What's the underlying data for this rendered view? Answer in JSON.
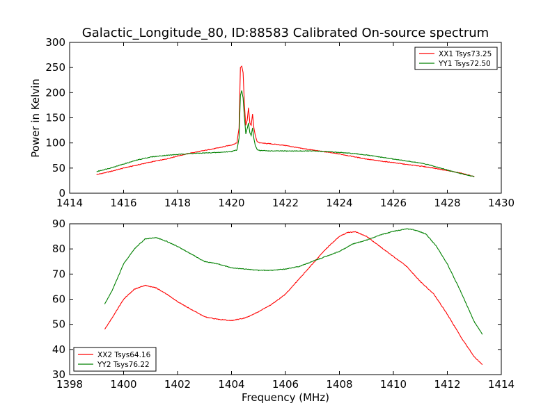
{
  "title": "Galactic_Longitude_80, ID:88583 Calibrated On-source spectrum",
  "xlabel": "Frequency (MHz)",
  "ylabel_top": "Power in Kelvin",
  "colors": {
    "red": "#ff0000",
    "green": "#008000",
    "axis": "#000000"
  },
  "chart_data": [
    {
      "type": "line",
      "xlabel": "",
      "ylabel": "Power in Kelvin",
      "xlim": [
        1414,
        1430
      ],
      "ylim": [
        0,
        300
      ],
      "xticks": [
        1414,
        1416,
        1418,
        1420,
        1422,
        1424,
        1426,
        1428,
        1430
      ],
      "yticks": [
        0,
        50,
        100,
        150,
        200,
        250,
        300
      ],
      "legend_position": "top-right",
      "grid": false,
      "series": [
        {
          "name": "XX1 Tsys73.25",
          "color": "red",
          "points": [
            [
              1415.0,
              37
            ],
            [
              1415.5,
              43
            ],
            [
              1416.0,
              50
            ],
            [
              1416.5,
              56
            ],
            [
              1417.0,
              62
            ],
            [
              1417.5,
              67
            ],
            [
              1418.0,
              74
            ],
            [
              1418.5,
              80
            ],
            [
              1419.0,
              85
            ],
            [
              1419.5,
              90
            ],
            [
              1420.0,
              96
            ],
            [
              1420.2,
              100
            ],
            [
              1420.28,
              130
            ],
            [
              1420.33,
              250
            ],
            [
              1420.38,
              253
            ],
            [
              1420.43,
              240
            ],
            [
              1420.48,
              175
            ],
            [
              1420.53,
              135
            ],
            [
              1420.58,
              145
            ],
            [
              1420.63,
              170
            ],
            [
              1420.68,
              140
            ],
            [
              1420.73,
              135
            ],
            [
              1420.78,
              157
            ],
            [
              1420.83,
              130
            ],
            [
              1420.88,
              115
            ],
            [
              1420.95,
              103
            ],
            [
              1421.05,
              100
            ],
            [
              1421.5,
              98
            ],
            [
              1422.0,
              95
            ],
            [
              1422.5,
              90
            ],
            [
              1423.0,
              86
            ],
            [
              1423.5,
              82
            ],
            [
              1424.0,
              78
            ],
            [
              1424.5,
              73
            ],
            [
              1425.0,
              68
            ],
            [
              1425.5,
              64
            ],
            [
              1426.0,
              61
            ],
            [
              1426.5,
              57
            ],
            [
              1427.0,
              54
            ],
            [
              1427.5,
              50
            ],
            [
              1428.0,
              45
            ],
            [
              1428.5,
              40
            ],
            [
              1429.0,
              33
            ]
          ]
        },
        {
          "name": "YY1 Tsys72.50",
          "color": "green",
          "points": [
            [
              1415.0,
              43
            ],
            [
              1415.5,
              50
            ],
            [
              1416.0,
              58
            ],
            [
              1416.5,
              66
            ],
            [
              1417.0,
              72
            ],
            [
              1417.5,
              75
            ],
            [
              1418.0,
              77
            ],
            [
              1418.5,
              79
            ],
            [
              1419.0,
              80
            ],
            [
              1419.5,
              81
            ],
            [
              1420.0,
              83
            ],
            [
              1420.2,
              86
            ],
            [
              1420.28,
              110
            ],
            [
              1420.33,
              195
            ],
            [
              1420.38,
              204
            ],
            [
              1420.43,
              190
            ],
            [
              1420.48,
              150
            ],
            [
              1420.53,
              118
            ],
            [
              1420.58,
              128
            ],
            [
              1420.63,
              140
            ],
            [
              1420.68,
              120
            ],
            [
              1420.73,
              115
            ],
            [
              1420.78,
              130
            ],
            [
              1420.83,
              108
            ],
            [
              1420.88,
              95
            ],
            [
              1420.95,
              87
            ],
            [
              1421.05,
              85
            ],
            [
              1421.5,
              84
            ],
            [
              1422.0,
              84
            ],
            [
              1422.5,
              84
            ],
            [
              1423.0,
              84
            ],
            [
              1423.5,
              83
            ],
            [
              1424.0,
              81
            ],
            [
              1424.5,
              79
            ],
            [
              1425.0,
              76
            ],
            [
              1425.5,
              72
            ],
            [
              1426.0,
              68
            ],
            [
              1426.5,
              64
            ],
            [
              1427.0,
              60
            ],
            [
              1427.5,
              54
            ],
            [
              1428.0,
              46
            ],
            [
              1428.5,
              39
            ],
            [
              1429.0,
              33
            ]
          ]
        }
      ]
    },
    {
      "type": "line",
      "xlabel": "Frequency (MHz)",
      "ylabel": "",
      "xlim": [
        1398,
        1414
      ],
      "ylim": [
        30,
        90
      ],
      "xticks": [
        1398,
        1400,
        1402,
        1404,
        1406,
        1408,
        1410,
        1412,
        1414
      ],
      "yticks": [
        30,
        40,
        50,
        60,
        70,
        80,
        90
      ],
      "legend_position": "bottom-left",
      "grid": false,
      "series": [
        {
          "name": "XX2 Tsys64.16",
          "color": "red",
          "points": [
            [
              1399.3,
              48
            ],
            [
              1399.6,
              53
            ],
            [
              1400.0,
              60
            ],
            [
              1400.4,
              64
            ],
            [
              1400.8,
              65.5
            ],
            [
              1401.2,
              64.5
            ],
            [
              1401.6,
              62
            ],
            [
              1402.0,
              59
            ],
            [
              1402.5,
              56
            ],
            [
              1403.0,
              53
            ],
            [
              1403.5,
              52
            ],
            [
              1404.0,
              51.5
            ],
            [
              1404.5,
              52.5
            ],
            [
              1405.0,
              55
            ],
            [
              1405.5,
              58
            ],
            [
              1406.0,
              62
            ],
            [
              1406.5,
              68
            ],
            [
              1407.0,
              74
            ],
            [
              1407.5,
              80
            ],
            [
              1408.0,
              85
            ],
            [
              1408.3,
              86.5
            ],
            [
              1408.6,
              86.8
            ],
            [
              1409.0,
              85
            ],
            [
              1409.5,
              81
            ],
            [
              1410.0,
              77
            ],
            [
              1410.5,
              73
            ],
            [
              1411.0,
              67
            ],
            [
              1411.5,
              62
            ],
            [
              1412.0,
              54
            ],
            [
              1412.5,
              45
            ],
            [
              1413.0,
              37
            ],
            [
              1413.3,
              34
            ]
          ]
        },
        {
          "name": "YY2 Tsys76.22",
          "color": "green",
          "points": [
            [
              1399.3,
              58
            ],
            [
              1399.6,
              64
            ],
            [
              1400.0,
              74
            ],
            [
              1400.4,
              80
            ],
            [
              1400.8,
              84
            ],
            [
              1401.2,
              84.5
            ],
            [
              1401.6,
              83
            ],
            [
              1402.0,
              81
            ],
            [
              1402.5,
              78
            ],
            [
              1403.0,
              75
            ],
            [
              1403.5,
              74
            ],
            [
              1404.0,
              72.5
            ],
            [
              1404.5,
              72
            ],
            [
              1405.0,
              71.5
            ],
            [
              1405.5,
              71.5
            ],
            [
              1406.0,
              72
            ],
            [
              1406.5,
              73
            ],
            [
              1407.0,
              75
            ],
            [
              1407.5,
              77
            ],
            [
              1408.0,
              79
            ],
            [
              1408.5,
              82
            ],
            [
              1409.0,
              83.5
            ],
            [
              1409.5,
              85.5
            ],
            [
              1410.0,
              87
            ],
            [
              1410.5,
              88
            ],
            [
              1410.8,
              87.5
            ],
            [
              1411.2,
              86
            ],
            [
              1411.6,
              81
            ],
            [
              1412.0,
              74
            ],
            [
              1412.5,
              63
            ],
            [
              1413.0,
              51
            ],
            [
              1413.3,
              46
            ]
          ]
        }
      ]
    }
  ]
}
